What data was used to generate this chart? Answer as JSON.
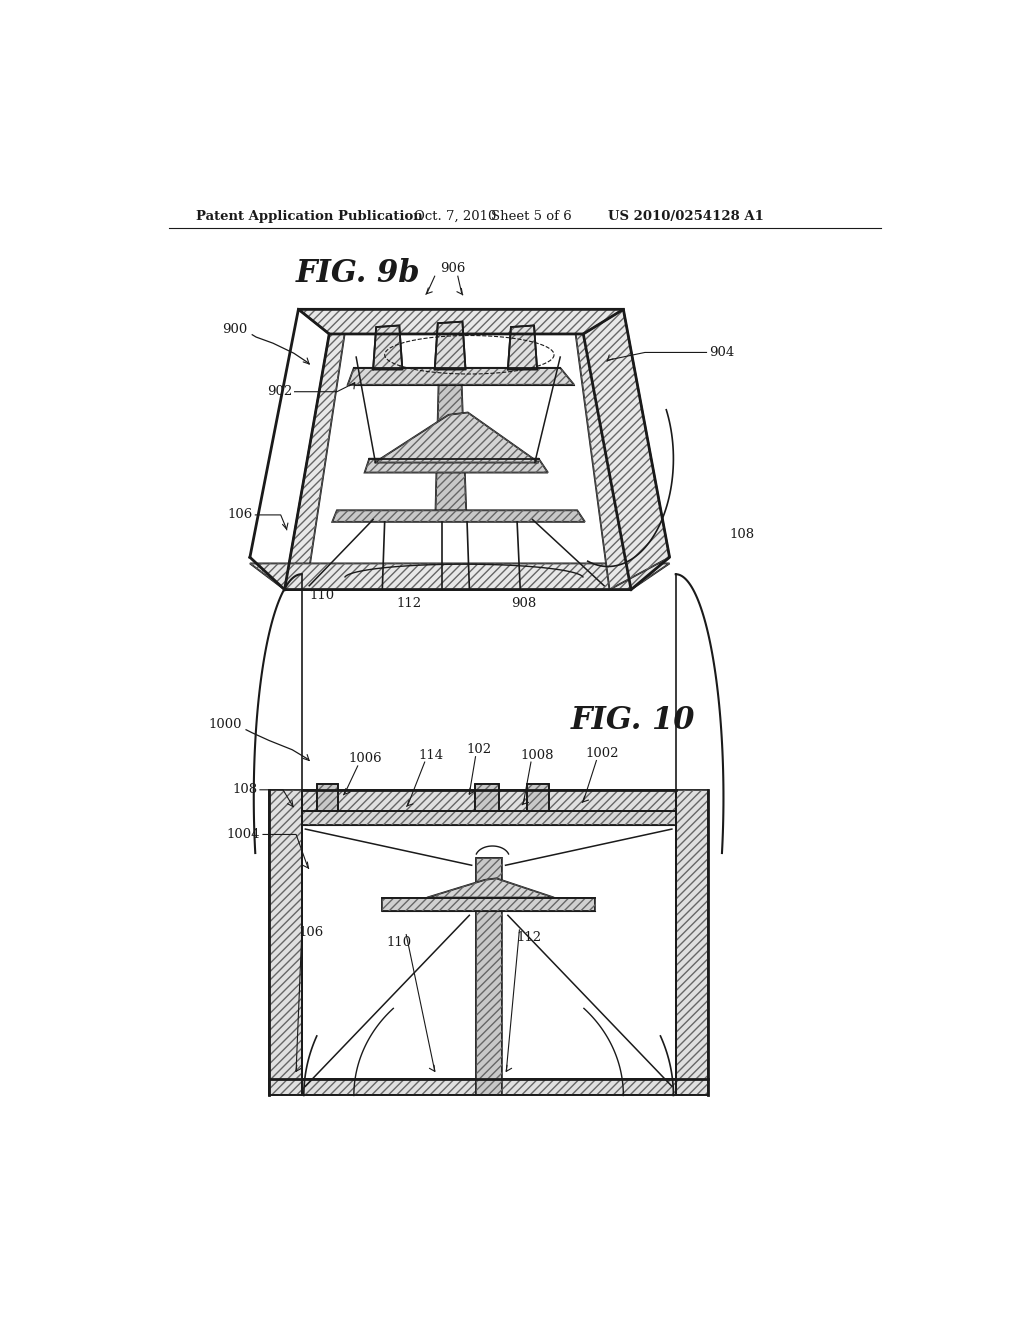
{
  "background_color": "#ffffff",
  "header_text": "Patent Application Publication",
  "header_date": "Oct. 7, 2010",
  "header_sheet": "Sheet 5 of 6",
  "header_patent": "US 2010/0254128 A1",
  "fig1_label": "FIG. 9b",
  "fig2_label": "FIG. 10",
  "line_color": "#1a1a1a",
  "text_color": "#1a1a1a"
}
